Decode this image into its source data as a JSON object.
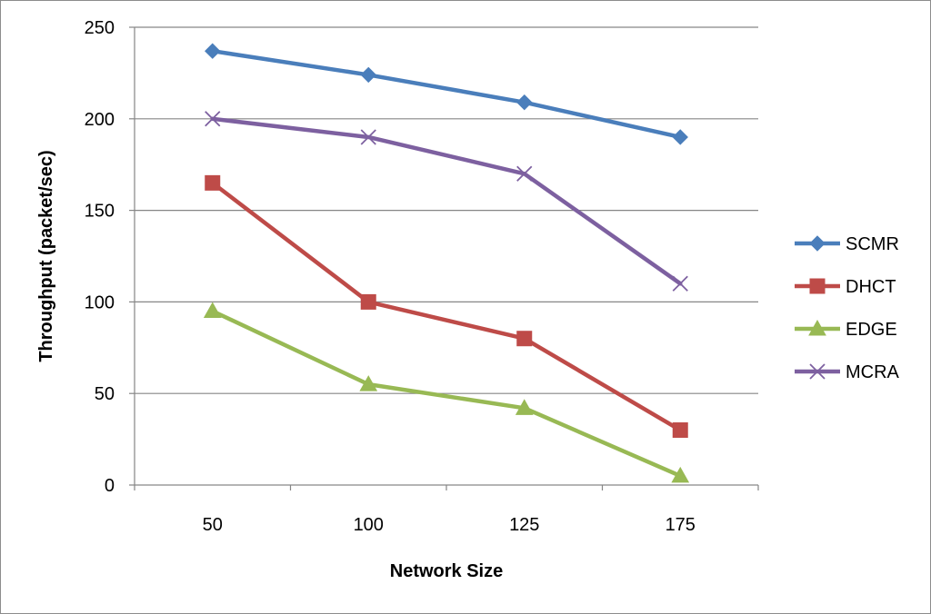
{
  "chart_data": {
    "type": "line",
    "title": "",
    "xlabel": "Network Size",
    "ylabel": "Throughput (packet/sec)",
    "categories": [
      "50",
      "100",
      "125",
      "175"
    ],
    "ylim": [
      0,
      250
    ],
    "yticks": [
      "0",
      "50",
      "100",
      "150",
      "200",
      "250"
    ],
    "grid": true,
    "legend_position": "right",
    "series": [
      {
        "name": "SCMR",
        "values": [
          237,
          224,
          209,
          190
        ],
        "color": "#4a7ebb",
        "marker": "diamond"
      },
      {
        "name": "DHCT",
        "values": [
          165,
          100,
          80,
          30
        ],
        "color": "#be4b48",
        "marker": "square"
      },
      {
        "name": "EDGE",
        "values": [
          95,
          55,
          42,
          5
        ],
        "color": "#98b954",
        "marker": "triangle"
      },
      {
        "name": "MCRA",
        "values": [
          200,
          190,
          170,
          110
        ],
        "color": "#7d60a0",
        "marker": "x"
      }
    ]
  }
}
